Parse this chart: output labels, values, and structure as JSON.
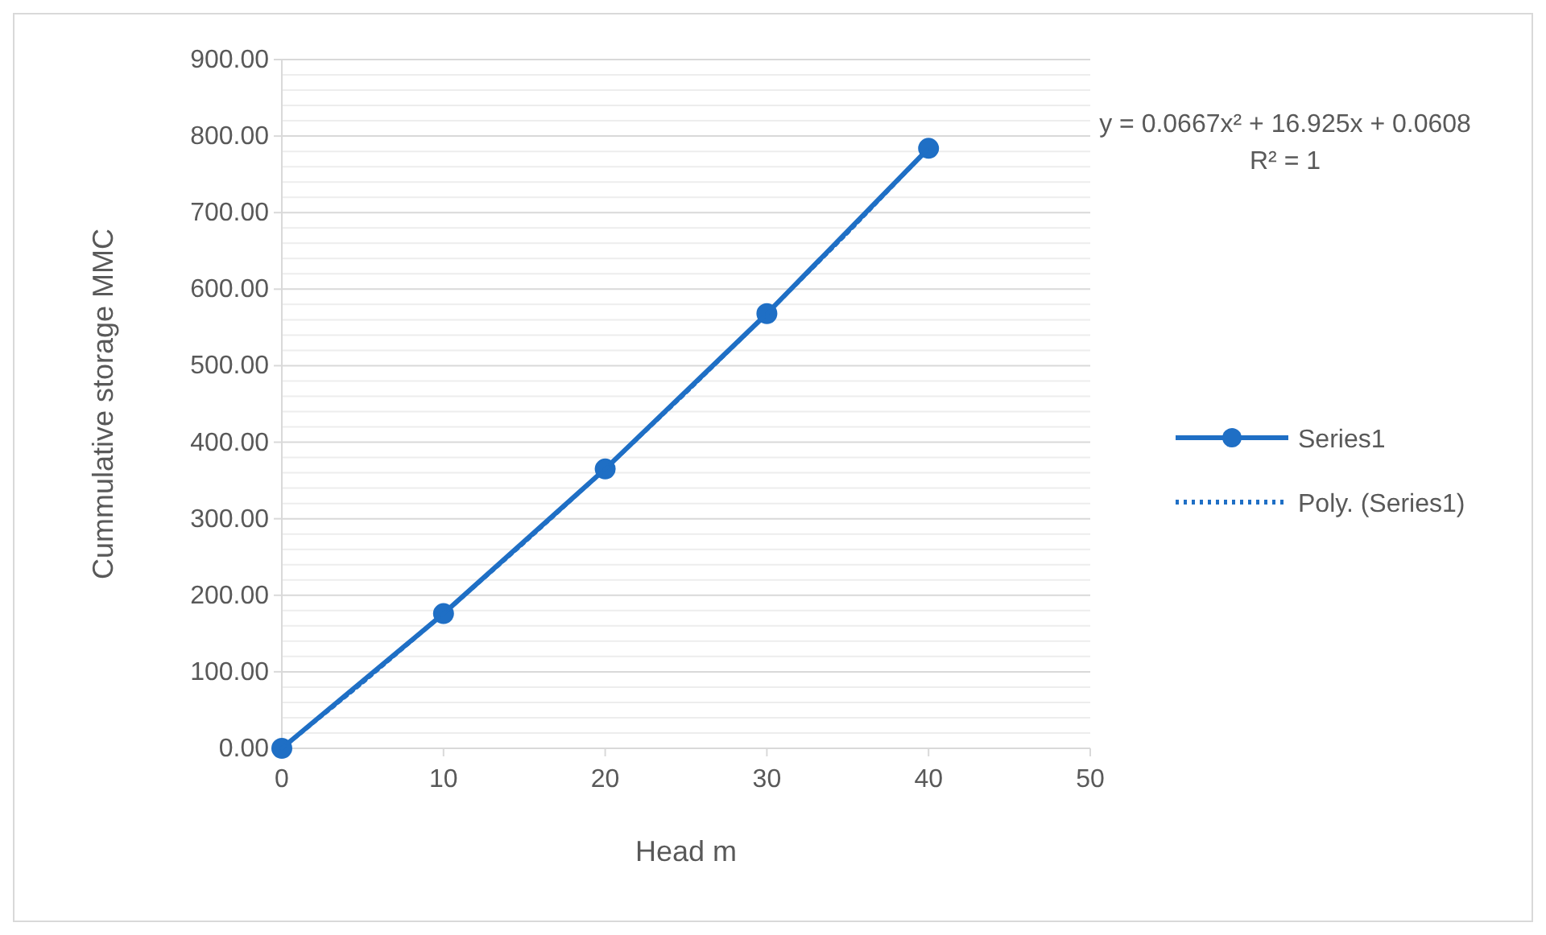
{
  "chart_data": {
    "type": "line",
    "xlabel": "Head m",
    "ylabel": "Cummulative storage MMC",
    "xlim": [
      0,
      50
    ],
    "xticks": [
      0,
      10,
      20,
      30,
      40,
      50
    ],
    "ylim": [
      0,
      900
    ],
    "yticks": [
      {
        "value": 0,
        "label": "0.00"
      },
      {
        "value": 20,
        "label": null
      },
      {
        "value": 40,
        "label": null
      },
      {
        "value": 60,
        "label": null
      },
      {
        "value": 80,
        "label": null
      },
      {
        "value": 100,
        "label": "100.00"
      },
      {
        "value": 120,
        "label": null
      },
      {
        "value": 140,
        "label": null
      },
      {
        "value": 160,
        "label": null
      },
      {
        "value": 180,
        "label": null
      },
      {
        "value": 200,
        "label": "200.00"
      },
      {
        "value": 220,
        "label": null
      },
      {
        "value": 240,
        "label": null
      },
      {
        "value": 260,
        "label": null
      },
      {
        "value": 280,
        "label": null
      },
      {
        "value": 300,
        "label": "300.00"
      },
      {
        "value": 320,
        "label": null
      },
      {
        "value": 340,
        "label": null
      },
      {
        "value": 360,
        "label": null
      },
      {
        "value": 380,
        "label": null
      },
      {
        "value": 400,
        "label": "400.00"
      },
      {
        "value": 420,
        "label": null
      },
      {
        "value": 440,
        "label": null
      },
      {
        "value": 460,
        "label": null
      },
      {
        "value": 480,
        "label": null
      },
      {
        "value": 500,
        "label": "500.00"
      },
      {
        "value": 520,
        "label": null
      },
      {
        "value": 540,
        "label": null
      },
      {
        "value": 560,
        "label": null
      },
      {
        "value": 580,
        "label": null
      },
      {
        "value": 600,
        "label": "600.00"
      },
      {
        "value": 620,
        "label": null
      },
      {
        "value": 640,
        "label": null
      },
      {
        "value": 660,
        "label": null
      },
      {
        "value": 680,
        "label": null
      },
      {
        "value": 700,
        "label": "700.00"
      },
      {
        "value": 720,
        "label": null
      },
      {
        "value": 740,
        "label": null
      },
      {
        "value": 760,
        "label": null
      },
      {
        "value": 780,
        "label": null
      },
      {
        "value": 800,
        "label": "800.00"
      },
      {
        "value": 820,
        "label": null
      },
      {
        "value": 840,
        "label": null
      },
      {
        "value": 860,
        "label": null
      },
      {
        "value": 880,
        "label": null
      },
      {
        "value": 900,
        "label": "900.00"
      }
    ],
    "grid": "y",
    "legend": "right",
    "series": [
      {
        "name": "Series1",
        "color": "#1f6fc5",
        "x": [
          0,
          10,
          20,
          30,
          40
        ],
        "values": [
          0,
          176,
          365,
          568,
          784
        ],
        "marker": "circle",
        "line_style": "solid"
      },
      {
        "name": "Poly. (Series1)",
        "color": "#1f6fc5",
        "x": [
          0,
          5,
          10,
          15,
          20,
          25,
          30,
          35,
          40
        ],
        "values": [
          0,
          86,
          176,
          269,
          365,
          465,
          568,
          674,
          784
        ],
        "marker": "none",
        "line_style": "dotted"
      }
    ],
    "annotations": [
      "y = 0.0667x² + 16.925x + 0.0608",
      "R² = 1"
    ]
  }
}
